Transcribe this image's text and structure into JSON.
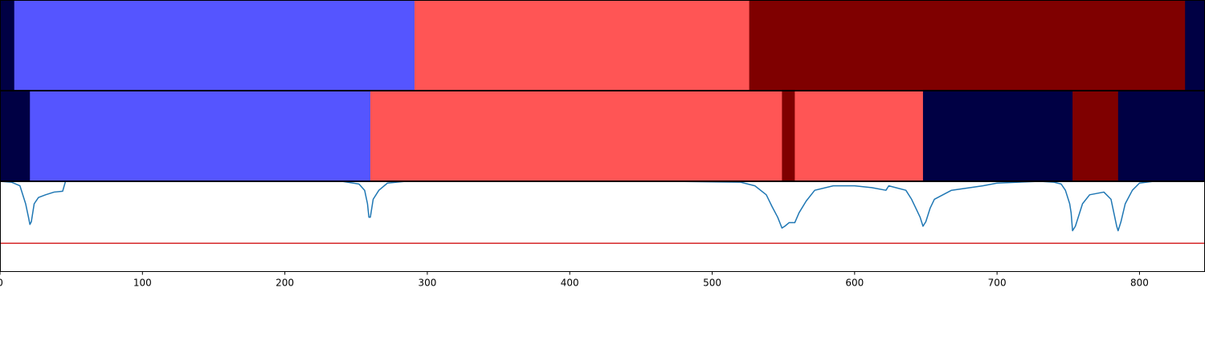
{
  "chart_data": [
    {
      "type": "heatmap",
      "row": "top",
      "segments": [
        {
          "start": 0,
          "end": 10,
          "color": "#000044"
        },
        {
          "start": 10,
          "end": 291,
          "color": "#5555ff"
        },
        {
          "start": 291,
          "end": 526,
          "color": "#ff5555"
        },
        {
          "start": 526,
          "end": 832,
          "color": "#7f0000"
        },
        {
          "start": 832,
          "end": 846,
          "color": "#000044"
        }
      ]
    },
    {
      "type": "heatmap",
      "row": "middle",
      "segments": [
        {
          "start": 0,
          "end": 21,
          "color": "#000044"
        },
        {
          "start": 21,
          "end": 260,
          "color": "#5555ff"
        },
        {
          "start": 260,
          "end": 549,
          "color": "#ff5555"
        },
        {
          "start": 549,
          "end": 558,
          "color": "#7f0000"
        },
        {
          "start": 558,
          "end": 648,
          "color": "#ff5555"
        },
        {
          "start": 648,
          "end": 753,
          "color": "#000044"
        },
        {
          "start": 753,
          "end": 785,
          "color": "#7f0000"
        },
        {
          "start": 785,
          "end": 846,
          "color": "#000044"
        }
      ]
    },
    {
      "type": "line",
      "row": "bottom",
      "xlim": [
        0,
        846
      ],
      "ylim": [
        0,
        1
      ],
      "xticks": [
        0,
        100,
        200,
        300,
        400,
        500,
        600,
        700,
        800
      ],
      "threshold": {
        "y": 0.31,
        "color": "#d62728"
      },
      "line_color": "#1f77b4",
      "x": [
        0,
        8,
        14,
        18,
        20,
        21,
        22,
        24,
        27,
        32,
        38,
        44,
        46,
        60,
        240,
        252,
        256,
        258,
        259,
        260,
        262,
        266,
        272,
        285,
        470,
        520,
        530,
        538,
        542,
        546,
        549,
        551,
        554,
        558,
        561,
        566,
        572,
        585,
        600,
        612,
        622,
        624,
        636,
        640,
        643,
        646,
        648,
        650,
        653,
        656,
        668,
        690,
        700,
        730,
        740,
        745,
        748,
        751,
        752,
        753,
        755,
        760,
        765,
        775,
        780,
        782,
        784,
        785,
        787,
        790,
        795,
        800,
        810,
        846
      ],
      "y": [
        1.0,
        0.99,
        0.95,
        0.75,
        0.6,
        0.52,
        0.55,
        0.75,
        0.82,
        0.85,
        0.88,
        0.89,
        1.0,
        1.0,
        1.0,
        0.97,
        0.9,
        0.75,
        0.6,
        0.6,
        0.8,
        0.9,
        0.98,
        1.0,
        1.0,
        0.99,
        0.95,
        0.85,
        0.72,
        0.6,
        0.48,
        0.5,
        0.54,
        0.54,
        0.65,
        0.78,
        0.9,
        0.95,
        0.95,
        0.93,
        0.9,
        0.95,
        0.9,
        0.8,
        0.7,
        0.6,
        0.5,
        0.55,
        0.7,
        0.8,
        0.9,
        0.95,
        0.98,
        1.0,
        0.99,
        0.97,
        0.9,
        0.75,
        0.65,
        0.45,
        0.5,
        0.75,
        0.85,
        0.88,
        0.8,
        0.65,
        0.5,
        0.45,
        0.55,
        0.75,
        0.9,
        0.98,
        1.0,
        1.0
      ]
    }
  ]
}
